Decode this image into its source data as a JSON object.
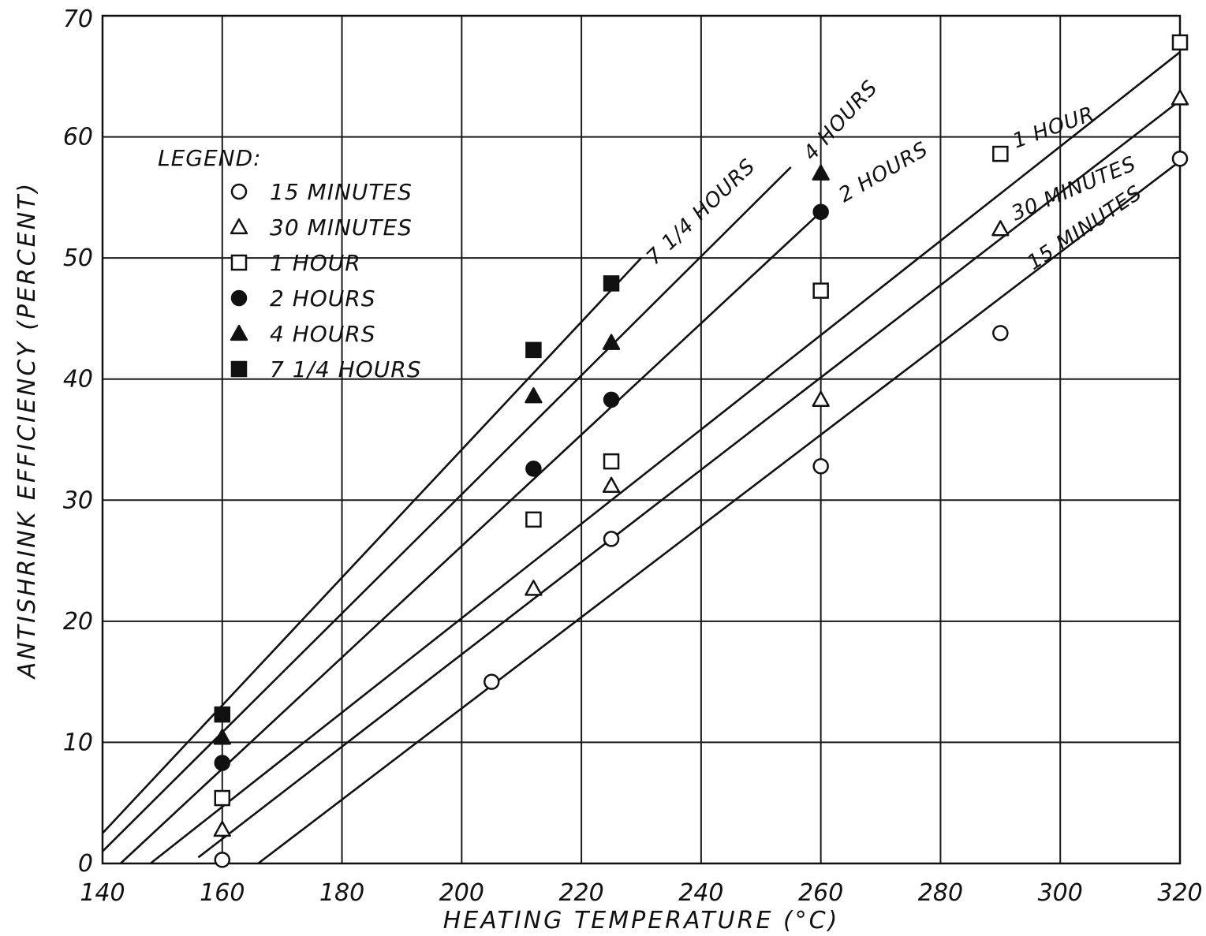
{
  "chart_data": {
    "type": "scatter",
    "title": "",
    "xlabel": "HEATING TEMPERATURE (°C)",
    "ylabel": "ANTISHRINK EFFICIENCY (PERCENT)",
    "xlim": [
      140,
      320
    ],
    "ylim": [
      0,
      70
    ],
    "x_ticks": [
      "140",
      "160",
      "180",
      "200",
      "220",
      "240",
      "260",
      "280",
      "300",
      "320"
    ],
    "y_ticks": [
      "0",
      "10",
      "20",
      "30",
      "40",
      "50",
      "60",
      "70"
    ],
    "grid": true,
    "legend_title": "LEGEND:",
    "legend_position": "top-left",
    "series": [
      {
        "name": "15 MINUTES",
        "marker": "circle-open",
        "line_label": "15 MINUTES",
        "points": [
          [
            160,
            0.3
          ],
          [
            205,
            15.0
          ],
          [
            225,
            26.8
          ],
          [
            260,
            32.8
          ],
          [
            290,
            43.8
          ],
          [
            320,
            58.2
          ]
        ],
        "fit": [
          [
            166,
            0
          ],
          [
            320,
            58
          ]
        ]
      },
      {
        "name": "30 MINUTES",
        "marker": "triangle-open",
        "line_label": "30 MINUTES",
        "points": [
          [
            160,
            2.8
          ],
          [
            212,
            22.7
          ],
          [
            225,
            31.2
          ],
          [
            260,
            38.3
          ],
          [
            290,
            52.4
          ],
          [
            320,
            63.2
          ]
        ],
        "fit": [
          [
            156,
            0.5
          ],
          [
            320,
            63
          ]
        ]
      },
      {
        "name": "1 HOUR",
        "marker": "square-open",
        "line_label": "1 HOUR",
        "points": [
          [
            160,
            5.4
          ],
          [
            212,
            28.4
          ],
          [
            225,
            33.2
          ],
          [
            260,
            47.3
          ],
          [
            290,
            58.6
          ],
          [
            320,
            67.8
          ]
        ],
        "fit": [
          [
            148,
            0
          ],
          [
            320,
            67
          ]
        ]
      },
      {
        "name": "2 HOURS",
        "marker": "circle-filled",
        "line_label": "2 HOURS",
        "points": [
          [
            160,
            8.3
          ],
          [
            212,
            32.6
          ],
          [
            225,
            38.3
          ],
          [
            260,
            53.8
          ]
        ],
        "fit": [
          [
            143,
            0
          ],
          [
            260,
            53.8
          ]
        ]
      },
      {
        "name": "4 HOURS",
        "marker": "triangle-filled",
        "line_label": "4 HOURS",
        "points": [
          [
            160,
            10.4
          ],
          [
            212,
            38.6
          ],
          [
            225,
            43.0
          ],
          [
            260,
            57.0
          ]
        ],
        "fit": [
          [
            140,
            1
          ],
          [
            255,
            57.5
          ]
        ]
      },
      {
        "name": "7 1/4 HOURS",
        "marker": "square-filled",
        "line_label": "7 1/4 HOURS",
        "points": [
          [
            160,
            12.3
          ],
          [
            212,
            42.4
          ],
          [
            225,
            47.9
          ]
        ],
        "fit": [
          [
            140,
            2.5
          ],
          [
            230,
            50
          ]
        ]
      }
    ]
  }
}
